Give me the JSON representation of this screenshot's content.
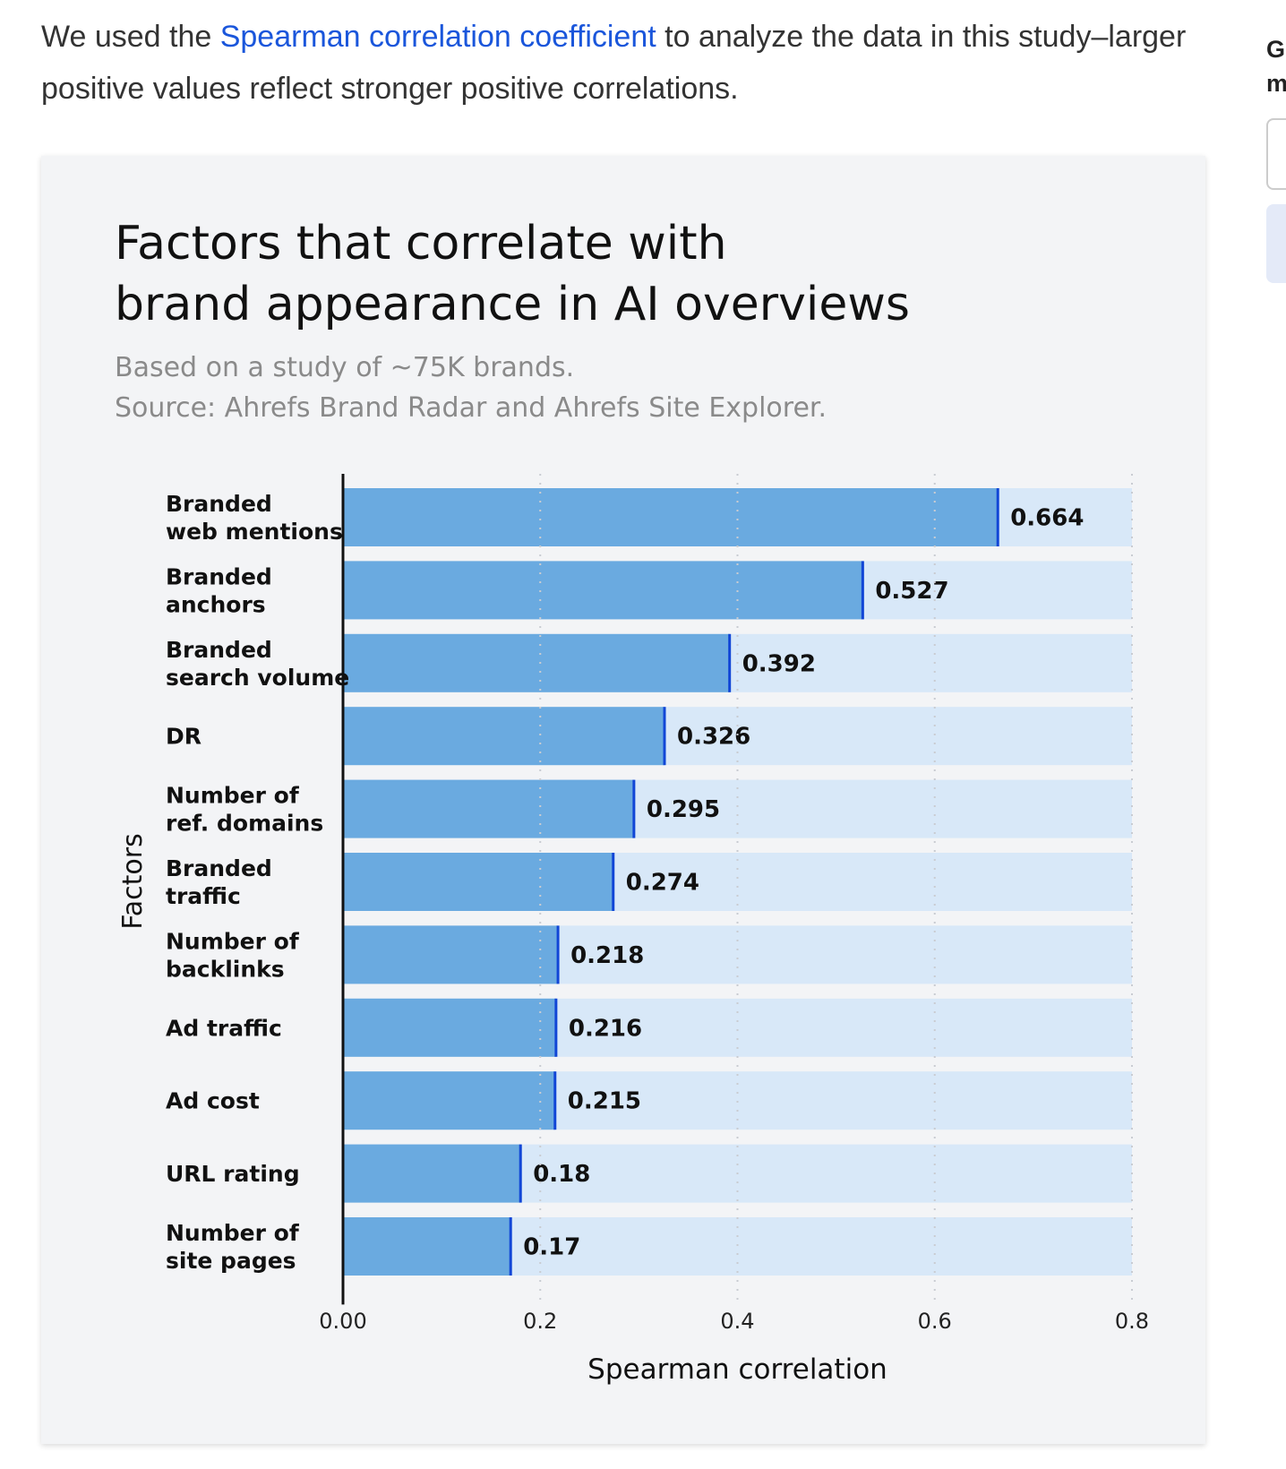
{
  "intro": {
    "before": "We used the ",
    "link": "Spearman correlation coefficient",
    "after": " to analyze the data in this study–larger positive values reflect stronger positive correlations."
  },
  "sidebar": {
    "heading": "G\nm"
  },
  "chart_data": {
    "type": "bar",
    "orientation": "horizontal",
    "title": "Factors that correlate with\nbrand appearance in AI overviews",
    "subtitle": [
      "Based on a study of ~75K brands.",
      "Source: Ahrefs Brand Radar and Ahrefs Site Explorer."
    ],
    "xlabel": "Spearman correlation",
    "ylabel": "Factors",
    "xlim": [
      0,
      0.8
    ],
    "xticks": [
      "0.00",
      "0.2",
      "0.4",
      "0.6",
      "0.8"
    ],
    "grid": "vertical dotted",
    "categories": [
      "Branded\nweb mentions",
      "Branded\nanchors",
      "Branded\nsearch volume",
      "DR",
      "Number of\nref. domains",
      "Branded\ntraffic",
      "Number of\nbacklinks",
      "Ad traffic",
      "Ad cost",
      "URL rating",
      "Number of\nsite pages"
    ],
    "values": [
      0.664,
      0.527,
      0.392,
      0.326,
      0.295,
      0.274,
      0.218,
      0.216,
      0.215,
      0.18,
      0.17
    ],
    "value_labels": [
      "0.664",
      "0.527",
      "0.392",
      "0.326",
      "0.295",
      "0.274",
      "0.218",
      "0.216",
      "0.215",
      "0.18",
      "0.17"
    ],
    "colors": {
      "bar": "#6aaae0",
      "track": "#d8e8f8",
      "bar_edge": "#1146d6"
    }
  }
}
